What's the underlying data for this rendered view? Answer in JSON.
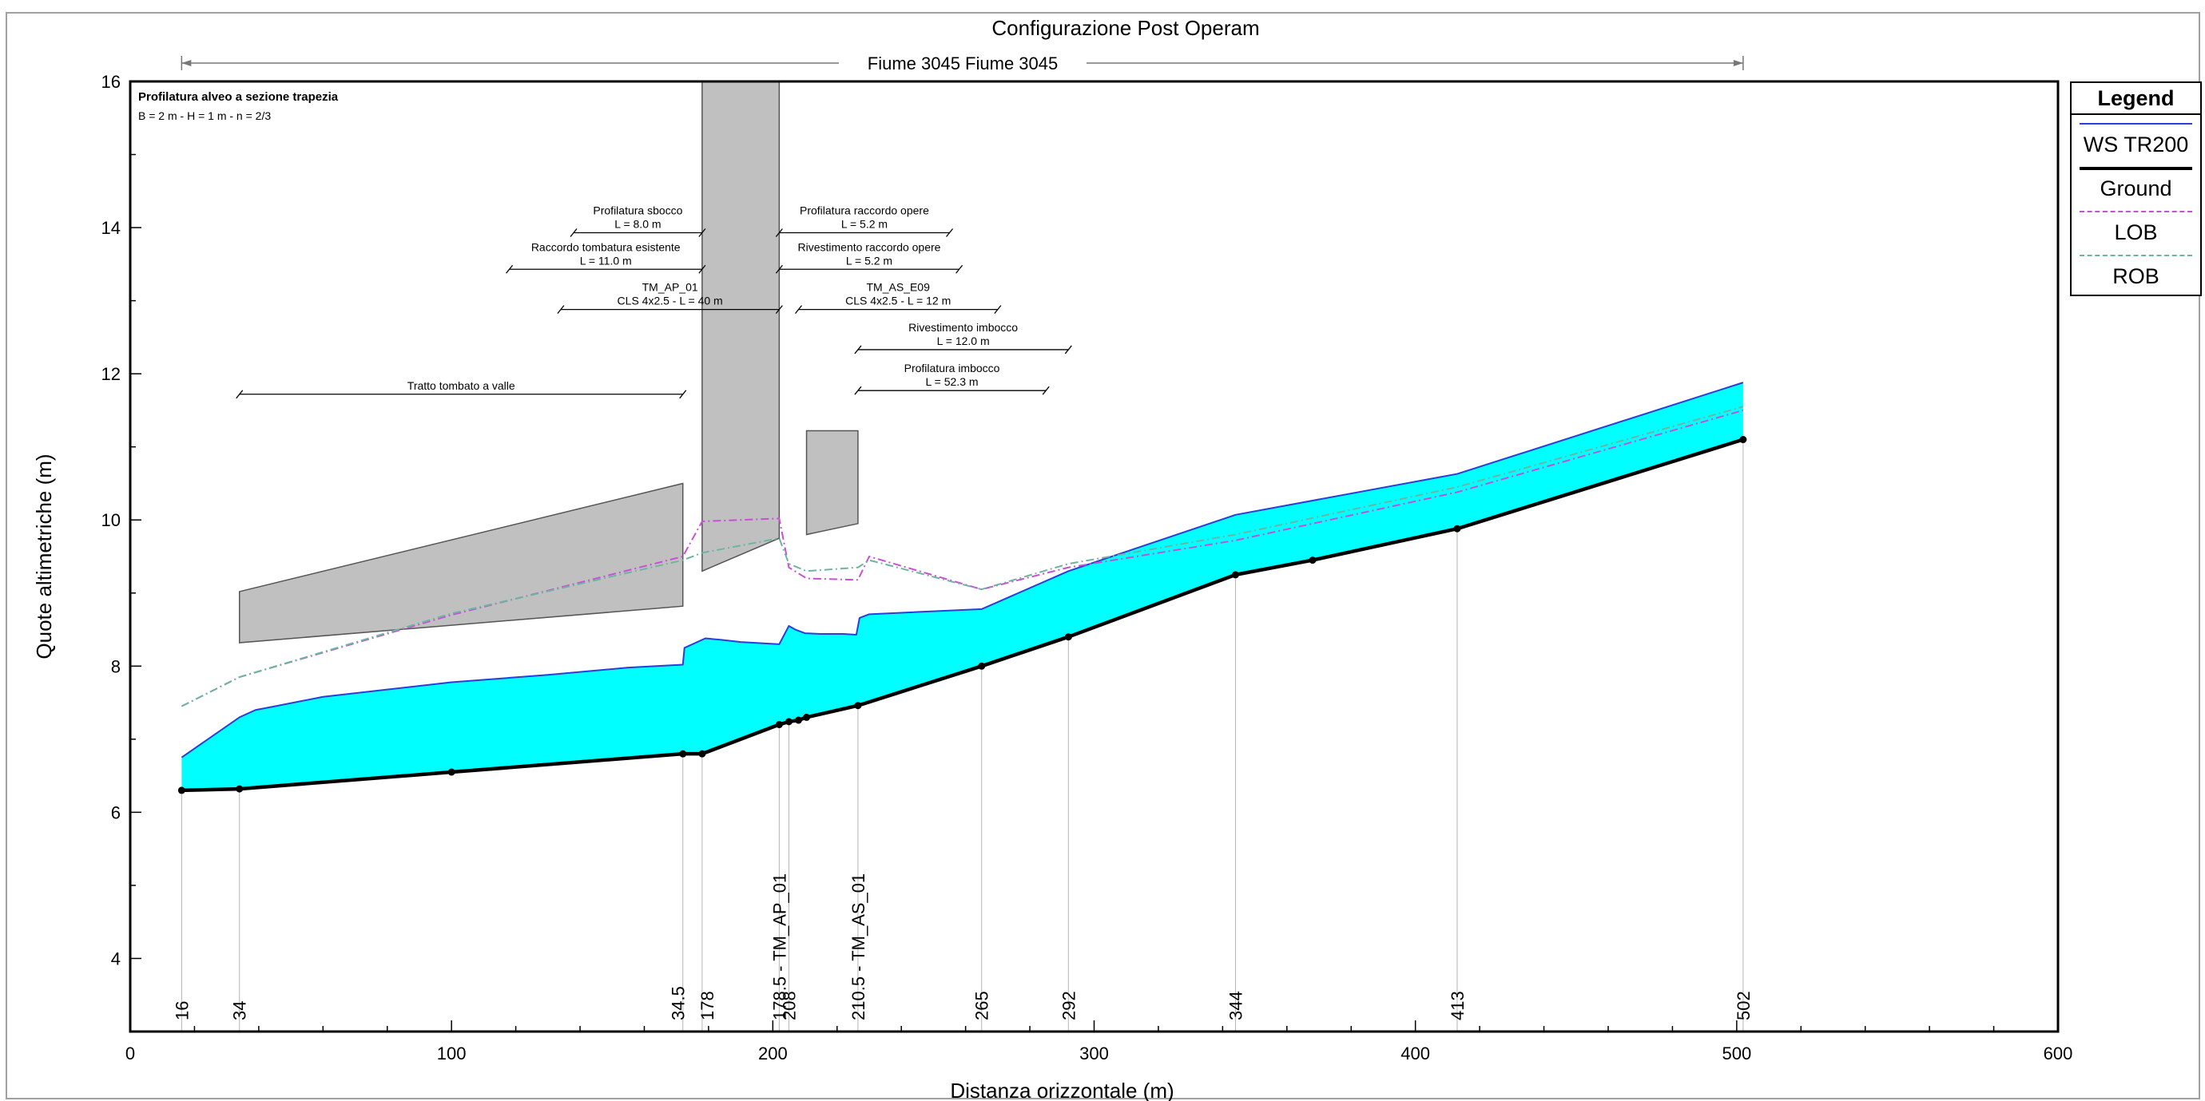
{
  "chart_data": {
    "type": "line",
    "title": "Configurazione Post Operam",
    "reach_label": "Fiume 3045 Fiume 3045",
    "xlabel": "Distanza orizzontale (m)",
    "ylabel": "Quote altimetriche (m)",
    "xlim": [
      0,
      600
    ],
    "ylim": [
      3,
      16
    ],
    "x_ticks": [
      0,
      100,
      200,
      300,
      400,
      500,
      600
    ],
    "y_ticks": [
      4,
      6,
      8,
      10,
      12,
      14,
      16
    ],
    "grid": false,
    "legend_position": "right",
    "note": {
      "title": "Profilatura alveo a sezione trapezia",
      "formula": "B = 2 m - H = 1 m - n = 2/3"
    },
    "series": [
      {
        "name": "WS  TR200",
        "color": "#2b3ddb",
        "fill": "#00ffff",
        "x": [
          16,
          34,
          39,
          45,
          60,
          80,
          100,
          130,
          155,
          172,
          172.5,
          179,
          184,
          190,
          202,
          205,
          207,
          210,
          215,
          222,
          226,
          227,
          230,
          265,
          292,
          344,
          413,
          502
        ],
        "y": [
          6.75,
          7.3,
          7.4,
          7.45,
          7.58,
          7.68,
          7.78,
          7.88,
          7.98,
          8.02,
          8.25,
          8.38,
          8.36,
          8.33,
          8.3,
          8.55,
          8.5,
          8.45,
          8.44,
          8.44,
          8.43,
          8.66,
          8.71,
          8.78,
          9.3,
          10.07,
          10.63,
          11.88
        ]
      },
      {
        "name": "Ground",
        "color": "#000000",
        "x": [
          16,
          34,
          100,
          172,
          178,
          202,
          205,
          208,
          210.5,
          226.5,
          265,
          292,
          344,
          368,
          413,
          502
        ],
        "y": [
          6.3,
          6.32,
          6.55,
          6.8,
          6.8,
          7.2,
          7.24,
          7.26,
          7.3,
          7.46,
          8.0,
          8.4,
          9.25,
          9.45,
          9.88,
          11.1
        ]
      },
      {
        "name": "LOB",
        "color": "#c94fd6",
        "x": [
          16,
          34,
          100,
          172,
          178,
          202,
          205,
          210.5,
          226.5,
          230,
          265,
          292,
          344,
          413,
          502
        ],
        "y": [
          7.45,
          7.85,
          8.7,
          9.5,
          9.98,
          10.02,
          9.35,
          9.2,
          9.18,
          9.5,
          9.05,
          9.35,
          9.72,
          10.38,
          11.5
        ]
      },
      {
        "name": "ROB",
        "color": "#6fb4a1",
        "x": [
          16,
          34,
          100,
          172,
          178,
          202,
          205,
          210.5,
          226.5,
          230,
          265,
          292,
          344,
          413,
          502
        ],
        "y": [
          7.45,
          7.85,
          8.72,
          9.45,
          9.55,
          9.75,
          9.4,
          9.3,
          9.35,
          9.45,
          9.05,
          9.4,
          9.8,
          10.45,
          11.55
        ]
      }
    ],
    "stations": [
      {
        "label": "16",
        "x": 16
      },
      {
        "label": "34",
        "x": 34
      },
      {
        "label": "34.5",
        "x": 172
      },
      {
        "label": "178",
        "x": 178
      },
      {
        "label": "178.5 - TM_AP_01",
        "x": 202
      },
      {
        "label": "208",
        "x": 205
      },
      {
        "label": "210.5 - TM_AS_01",
        "x": 226.5
      },
      {
        "label": "265",
        "x": 265
      },
      {
        "label": "292",
        "x": 292
      },
      {
        "label": "344",
        "x": 344
      },
      {
        "label": "413",
        "x": 413
      },
      {
        "label": "502",
        "x": 502
      }
    ],
    "structures": [
      {
        "x": [
          34,
          172
        ],
        "top": [
          9.02,
          10.5
        ],
        "bottom": [
          8.32,
          8.82
        ]
      },
      {
        "x": [
          178,
          202
        ],
        "top": [
          16,
          16
        ],
        "bottom": [
          9.3,
          9.75
        ]
      },
      {
        "x": [
          210.5,
          226.5
        ],
        "top": [
          11.22,
          11.22
        ],
        "bottom": [
          9.8,
          9.95
        ]
      }
    ],
    "annotations": [
      {
        "lines": [
          "Profilatura sbocco",
          "L = 8.0 m"
        ],
        "y": 13.93,
        "x1": 138,
        "x2": 178
      },
      {
        "lines": [
          "Profilatura raccordo opere",
          "L = 5.2 m"
        ],
        "y": 13.93,
        "x1": 202,
        "x2": 255
      },
      {
        "lines": [
          "Raccordo tombatura esistente",
          "L = 11.0 m"
        ],
        "y": 13.43,
        "x1": 118,
        "x2": 178
      },
      {
        "lines": [
          "Rivestimento raccordo opere",
          "L = 5.2 m"
        ],
        "y": 13.43,
        "x1": 202,
        "x2": 258
      },
      {
        "lines": [
          "TM_AP_01",
          "CLS 4x2.5 - L = 40 m"
        ],
        "y": 12.88,
        "x1": 134,
        "x2": 202
      },
      {
        "lines": [
          "TM_AS_E09",
          "CLS 4x2.5 - L = 12 m"
        ],
        "y": 12.88,
        "x1": 208,
        "x2": 270
      },
      {
        "lines": [
          "Rivestimento imbocco",
          "L = 12.0 m"
        ],
        "y": 12.33,
        "x1": 226.5,
        "x2": 292
      },
      {
        "lines": [
          "Profilatura imbocco",
          "L = 52.3 m"
        ],
        "y": 11.77,
        "x1": 226.5,
        "x2": 285
      },
      {
        "lines": [
          "Tratto tombato a valle"
        ],
        "y": 11.72,
        "x1": 34,
        "x2": 172
      }
    ]
  },
  "legend": {
    "title": "Legend",
    "items": [
      {
        "label": "WS  TR200",
        "color": "#2b3ddb",
        "style": "solid"
      },
      {
        "label": "Ground",
        "color": "#000000",
        "style": "thick"
      },
      {
        "label": "LOB",
        "color": "#c94fd6",
        "style": "dashdot"
      },
      {
        "label": "ROB",
        "color": "#6fb4a1",
        "style": "dashdot"
      }
    ]
  }
}
